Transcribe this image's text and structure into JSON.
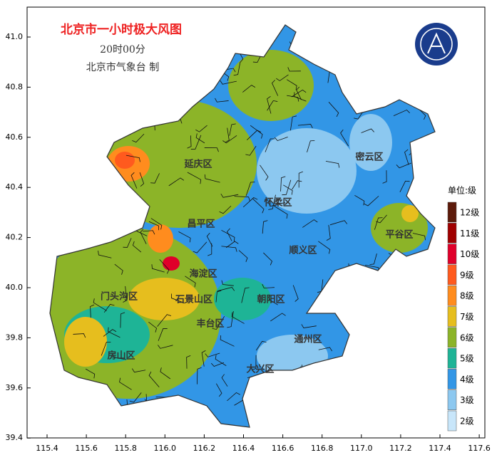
{
  "title": "北京市一小时极大风图",
  "time": "20时00分",
  "issuer": "北京市气象台 制",
  "districts": [
    "延庆区",
    "怀柔区",
    "密云区",
    "昌平区",
    "平谷区",
    "顺义区",
    "海淀区",
    "门头沟区",
    "石景山区",
    "朝阳区",
    "丰台区",
    "通州区",
    "房山区",
    "大兴区"
  ],
  "legend": {
    "title": "单位:级",
    "levels": [
      {
        "label": "12级",
        "color": "#5c1a0a"
      },
      {
        "label": "11级",
        "color": "#a00000"
      },
      {
        "label": "10级",
        "color": "#e0002a"
      },
      {
        "label": "9级",
        "color": "#ff5a1e"
      },
      {
        "label": "8级",
        "color": "#ff8c1e"
      },
      {
        "label": "7级",
        "color": "#e6be1e"
      },
      {
        "label": "6级",
        "color": "#8cb428"
      },
      {
        "label": "5级",
        "color": "#1eb496"
      },
      {
        "label": "4级",
        "color": "#3296e6"
      },
      {
        "label": "3级",
        "color": "#8cc8f0"
      },
      {
        "label": "2级",
        "color": "#c8e6fa"
      }
    ]
  },
  "xticks": [
    115.4,
    115.6,
    115.8,
    {
      "value": 116,
      "label": "116.0"
    },
    116.2,
    116.4,
    116.6,
    116.8,
    {
      "value": 117,
      "label": "117.0"
    },
    117.2,
    117.4,
    117.6
  ],
  "yticks": [
    39.4,
    39.6,
    39.8,
    {
      "value": 40,
      "label": "40.0"
    },
    40.2,
    40.4,
    40.6,
    40.8,
    {
      "value": 41,
      "label": "41.0"
    }
  ]
}
